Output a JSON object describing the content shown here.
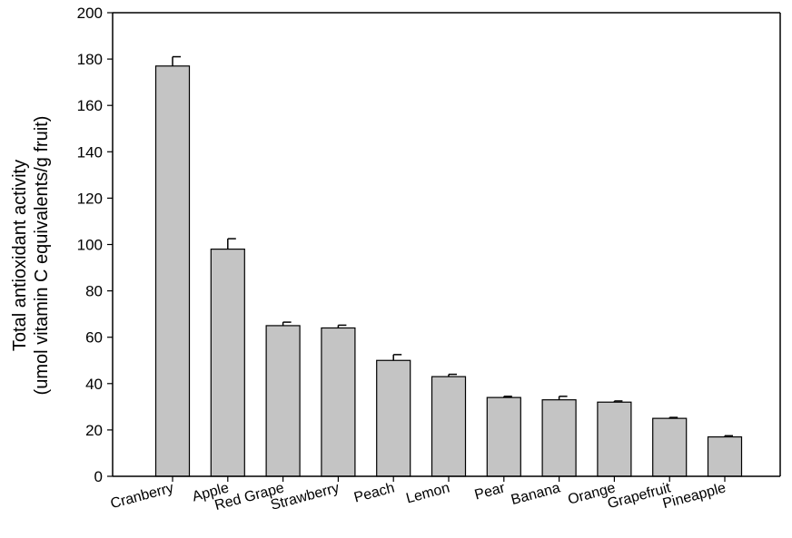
{
  "chart_data": {
    "type": "bar",
    "ylabel_line1": "Total antioxidant activity",
    "ylabel_line2": "(umol vitamin C equivalents/g fruit)",
    "xlabel": "",
    "ylim": [
      0,
      200
    ],
    "yticks": [
      0,
      20,
      40,
      60,
      80,
      100,
      120,
      140,
      160,
      180,
      200
    ],
    "categories": [
      "Cranberry",
      "Apple",
      "Red Grape",
      "Strawberry",
      "Peach",
      "Lemon",
      "Pear",
      "Banana",
      "Orange",
      "Grapefruit",
      "Pineapple"
    ],
    "values": [
      177,
      98,
      65,
      64,
      50,
      43,
      34,
      33,
      32,
      25,
      17
    ],
    "errors": [
      4,
      4.5,
      1.5,
      1.2,
      2.5,
      1,
      0.5,
      1.5,
      0.5,
      0.4,
      0.5
    ],
    "bar_color": "#c4c4c4",
    "grid": false,
    "error_bars": "upper"
  }
}
